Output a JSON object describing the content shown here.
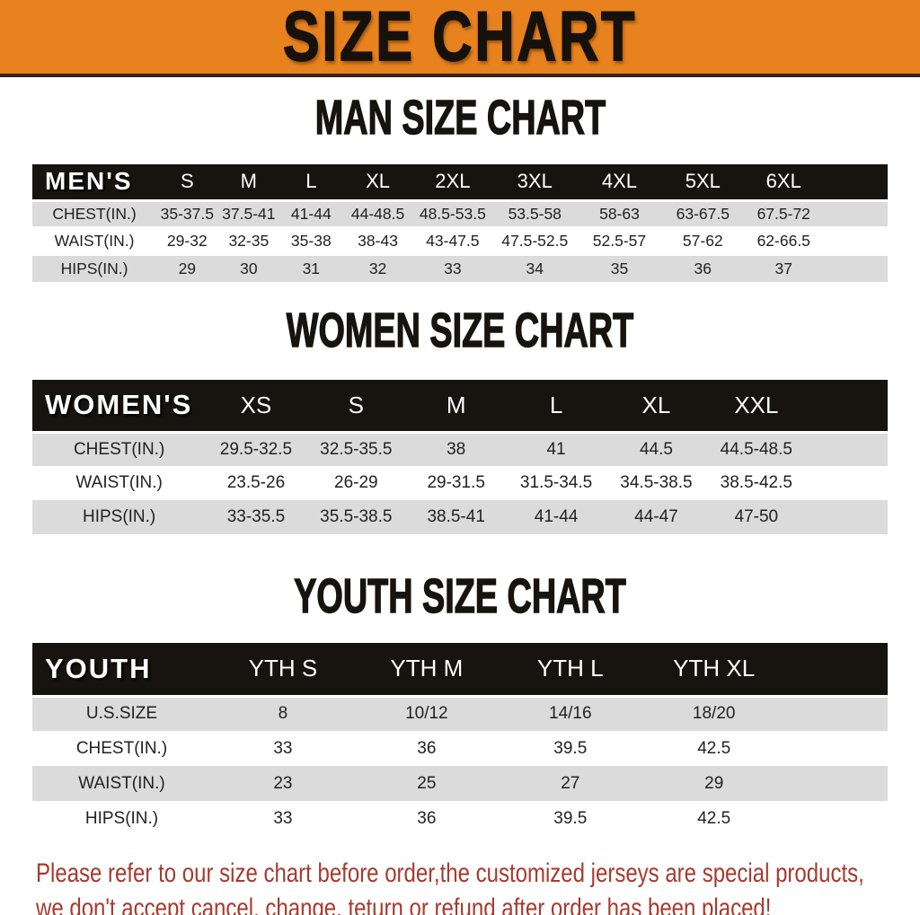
{
  "banner": {
    "title": "SIZE CHART"
  },
  "men": {
    "heading": "MAN SIZE CHART",
    "table": {
      "corner": "MEN'S",
      "columns": [
        "S",
        "M",
        "L",
        "XL",
        "2XL",
        "3XL",
        "4XL",
        "5XL",
        "6XL"
      ],
      "rows": [
        {
          "label": "CHEST(IN.)",
          "values": [
            "35-37.5",
            "37.5-41",
            "41-44",
            "44-48.5",
            "48.5-53.5",
            "53.5-58",
            "58-63",
            "63-67.5",
            "67.5-72"
          ]
        },
        {
          "label": "WAIST(IN.)",
          "values": [
            "29-32",
            "32-35",
            "35-38",
            "38-43",
            "43-47.5",
            "47.5-52.5",
            "52.5-57",
            "57-62",
            "62-66.5"
          ]
        },
        {
          "label": "HIPS(IN.)",
          "values": [
            "29",
            "30",
            "31",
            "32",
            "33",
            "34",
            "35",
            "36",
            "37"
          ]
        }
      ]
    }
  },
  "women": {
    "heading": "WOMEN SIZE CHART",
    "table": {
      "corner": "WOMEN'S",
      "columns": [
        "XS",
        "S",
        "M",
        "L",
        "XL",
        "XXL"
      ],
      "rows": [
        {
          "label": "CHEST(IN.)",
          "values": [
            "29.5-32.5",
            "32.5-35.5",
            "38",
            "41",
            "44.5",
            "44.5-48.5"
          ]
        },
        {
          "label": "WAIST(IN.)",
          "values": [
            "23.5-26",
            "26-29",
            "29-31.5",
            "31.5-34.5",
            "34.5-38.5",
            "38.5-42.5"
          ]
        },
        {
          "label": "HIPS(IN.)",
          "values": [
            "33-35.5",
            "35.5-38.5",
            "38.5-41",
            "41-44",
            "44-47",
            "47-50"
          ]
        }
      ]
    }
  },
  "youth": {
    "heading": "YOUTH SIZE CHART",
    "table": {
      "corner": "YOUTH",
      "columns": [
        "YTH S",
        "YTH M",
        "YTH L",
        "YTH XL"
      ],
      "rows": [
        {
          "label": "U.S.SIZE",
          "values": [
            "8",
            "10/12",
            "14/16",
            "18/20"
          ]
        },
        {
          "label": "CHEST(IN.)",
          "values": [
            "33",
            "36",
            "39.5",
            "42.5"
          ]
        },
        {
          "label": "WAIST(IN.)",
          "values": [
            "23",
            "25",
            "27",
            "29"
          ]
        },
        {
          "label": "HIPS(IN.)",
          "values": [
            "33",
            "36",
            "39.5",
            "42.5"
          ]
        }
      ]
    }
  },
  "footer": {
    "line1": "Please refer to our size chart before order,the customized jerseys are special products,",
    "line2": "we don't accept cancel, change, teturn or refund after order has been placed!"
  },
  "colors": {
    "banner_bg": "#E8821E",
    "header_bar_bg": "#17130E",
    "row_stripe_gray": "#DBDBDB",
    "footer_text_red": "#A63A2E",
    "title_text": "#16110B"
  },
  "chart_data": [
    {
      "type": "table",
      "title": "MAN SIZE CHART",
      "columns": [
        "MEN'S",
        "S",
        "M",
        "L",
        "XL",
        "2XL",
        "3XL",
        "4XL",
        "5XL",
        "6XL"
      ],
      "rows": [
        [
          "CHEST(IN.)",
          "35-37.5",
          "37.5-41",
          "41-44",
          "44-48.5",
          "48.5-53.5",
          "53.5-58",
          "58-63",
          "63-67.5",
          "67.5-72"
        ],
        [
          "WAIST(IN.)",
          "29-32",
          "32-35",
          "35-38",
          "38-43",
          "43-47.5",
          "47.5-52.5",
          "52.5-57",
          "57-62",
          "62-66.5"
        ],
        [
          "HIPS(IN.)",
          "29",
          "30",
          "31",
          "32",
          "33",
          "34",
          "35",
          "36",
          "37"
        ]
      ]
    },
    {
      "type": "table",
      "title": "WOMEN SIZE CHART",
      "columns": [
        "WOMEN'S",
        "XS",
        "S",
        "M",
        "L",
        "XL",
        "XXL"
      ],
      "rows": [
        [
          "CHEST(IN.)",
          "29.5-32.5",
          "32.5-35.5",
          "38",
          "41",
          "44.5",
          "44.5-48.5"
        ],
        [
          "WAIST(IN.)",
          "23.5-26",
          "26-29",
          "29-31.5",
          "31.5-34.5",
          "34.5-38.5",
          "38.5-42.5"
        ],
        [
          "HIPS(IN.)",
          "33-35.5",
          "35.5-38.5",
          "38.5-41",
          "41-44",
          "44-47",
          "47-50"
        ]
      ]
    },
    {
      "type": "table",
      "title": "YOUTH SIZE CHART",
      "columns": [
        "YOUTH",
        "YTH S",
        "YTH M",
        "YTH L",
        "YTH XL"
      ],
      "rows": [
        [
          "U.S.SIZE",
          "8",
          "10/12",
          "14/16",
          "18/20"
        ],
        [
          "CHEST(IN.)",
          "33",
          "36",
          "39.5",
          "42.5"
        ],
        [
          "WAIST(IN.)",
          "23",
          "25",
          "27",
          "29"
        ],
        [
          "HIPS(IN.)",
          "33",
          "36",
          "39.5",
          "42.5"
        ]
      ]
    }
  ]
}
